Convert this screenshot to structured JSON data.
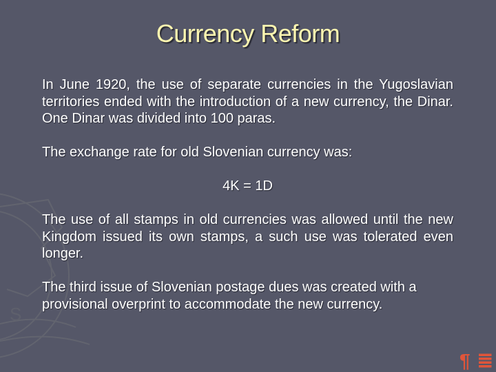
{
  "slide": {
    "title": "Currency Reform",
    "paragraphs": [
      "In June 1920, the use of separate currencies in the Yugoslavian territories ended with the introduction of a new currency, the Dinar. One Dinar was divided into 100 paras.",
      "The exchange rate for old Slovenian currency was:",
      "4K = 1D",
      "The use of all stamps in old currencies was allowed until the new Kingdom issued its own stamps, a such use was tolerated even longer.",
      "The third issue of Slovenian postage dues was created with a provisional overprint to accommodate the new currency."
    ]
  },
  "nav": {
    "prev_icon": "pilcrow-icon",
    "next_icon": "notes-icon",
    "prev_glyph": "¶",
    "next_glyph": "≣"
  },
  "colors": {
    "background": "#555768",
    "title": "#fdf6b0",
    "text": "#ffffff",
    "icon": "#e0553a"
  }
}
